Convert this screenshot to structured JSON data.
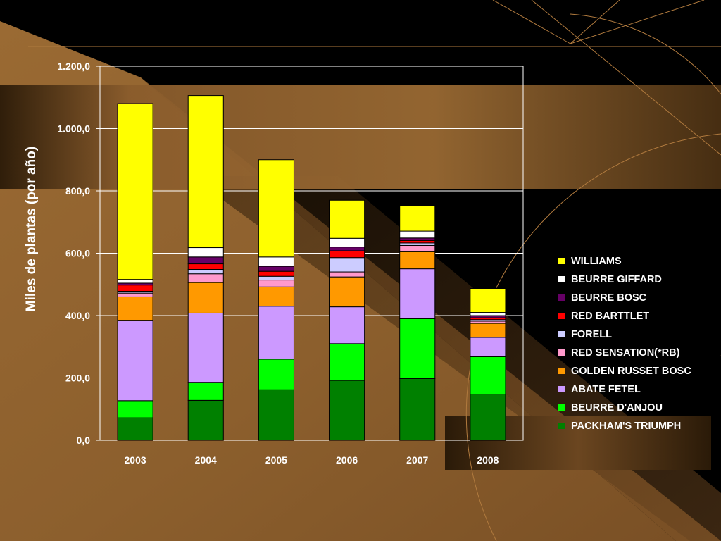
{
  "chart_data": {
    "type": "bar",
    "stacked": true,
    "ylabel": "Miles de plantas (por año)",
    "xlabel": "",
    "categories": [
      "2003",
      "2004",
      "2005",
      "2006",
      "2007",
      "2008"
    ],
    "ylim": [
      0,
      1200
    ],
    "yticks": [
      0,
      200,
      400,
      600,
      800,
      1000,
      1200
    ],
    "ytick_labels": [
      "0,0",
      "200,0",
      "400,0",
      "600,0",
      "800,0",
      "1.000,0",
      "1.200,0"
    ],
    "grid": true,
    "legend_position": "right",
    "series": [
      {
        "name": "PACKHAM'S TRIUMPH",
        "color": "#008000",
        "values": [
          72,
          128,
          162,
          192,
          198,
          148
        ]
      },
      {
        "name": "BEURRE D'ANJOU",
        "color": "#00FF00",
        "values": [
          55,
          58,
          98,
          118,
          192,
          120
        ]
      },
      {
        "name": "ABATE FETEL",
        "color": "#CC99FF",
        "values": [
          258,
          222,
          170,
          118,
          160,
          62
        ]
      },
      {
        "name": "GOLDEN RUSSET BOSC",
        "color": "#FF9900",
        "values": [
          75,
          98,
          62,
          96,
          55,
          45
        ]
      },
      {
        "name": "RED SENSATION(*RB)",
        "color": "#FF99CC",
        "values": [
          12,
          28,
          22,
          16,
          20,
          7
        ]
      },
      {
        "name": "FORELL",
        "color": "#CCCCFF",
        "values": [
          6,
          14,
          12,
          46,
          8,
          5
        ]
      },
      {
        "name": "RED BARTTLET",
        "color": "#FF0000",
        "values": [
          20,
          18,
          16,
          22,
          8,
          6
        ]
      },
      {
        "name": "BEURRE BOSC",
        "color": "#660066",
        "values": [
          6,
          22,
          16,
          12,
          8,
          7
        ]
      },
      {
        "name": "BEURRE GIFFARD",
        "color": "#FFFFFF",
        "values": [
          12,
          30,
          30,
          28,
          22,
          10
        ]
      },
      {
        "name": "WILLIAMS",
        "color": "#FFFF00",
        "values": [
          564,
          488,
          312,
          122,
          81,
          77
        ]
      }
    ]
  },
  "colors": {
    "background": "#000000",
    "brown": "#9A6A33",
    "brown_dark": "#4A3013",
    "accent_line": "#B07A3E",
    "plot_border": "#FFFFFF",
    "text": "#FFFFFF"
  }
}
